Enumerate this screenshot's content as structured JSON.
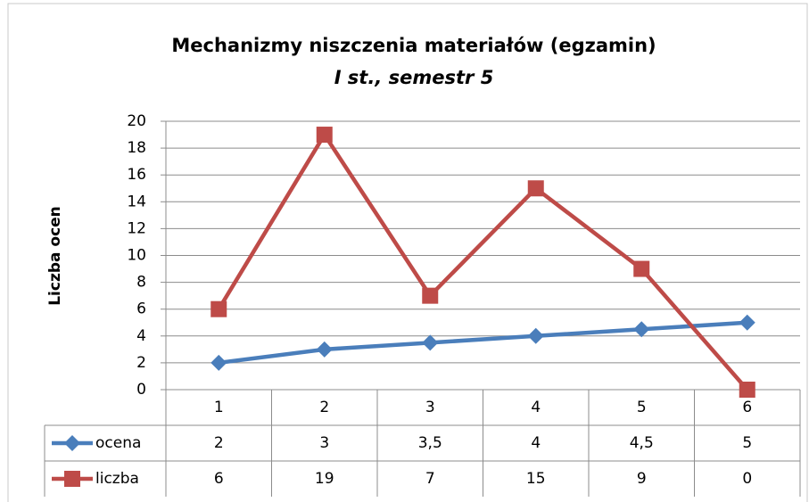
{
  "chart_data": {
    "type": "line",
    "title": "Mechanizmy niszczenia materiałów (egzamin)",
    "subtitle": "I st., semestr 5",
    "y_label": "Liczba ocen",
    "categories": [
      "1",
      "2",
      "3",
      "4",
      "5",
      "6"
    ],
    "series": [
      {
        "name": "ocena",
        "color": "#4a7ebb",
        "marker": "diamond",
        "values": [
          2,
          3,
          3.5,
          4,
          4.5,
          5
        ],
        "value_labels": [
          "2",
          "3",
          "3,5",
          "4",
          "4,5",
          "5"
        ]
      },
      {
        "name": "liczba",
        "color": "#be4b48",
        "marker": "square",
        "values": [
          6,
          19,
          7,
          15,
          9,
          0
        ],
        "value_labels": [
          "6",
          "19",
          "7",
          "15",
          "9",
          "0"
        ]
      }
    ],
    "ylim": [
      0,
      20
    ],
    "yticks": [
      0,
      2,
      4,
      6,
      8,
      10,
      12,
      14,
      16,
      18,
      20
    ],
    "grid": true,
    "data_table": true
  }
}
